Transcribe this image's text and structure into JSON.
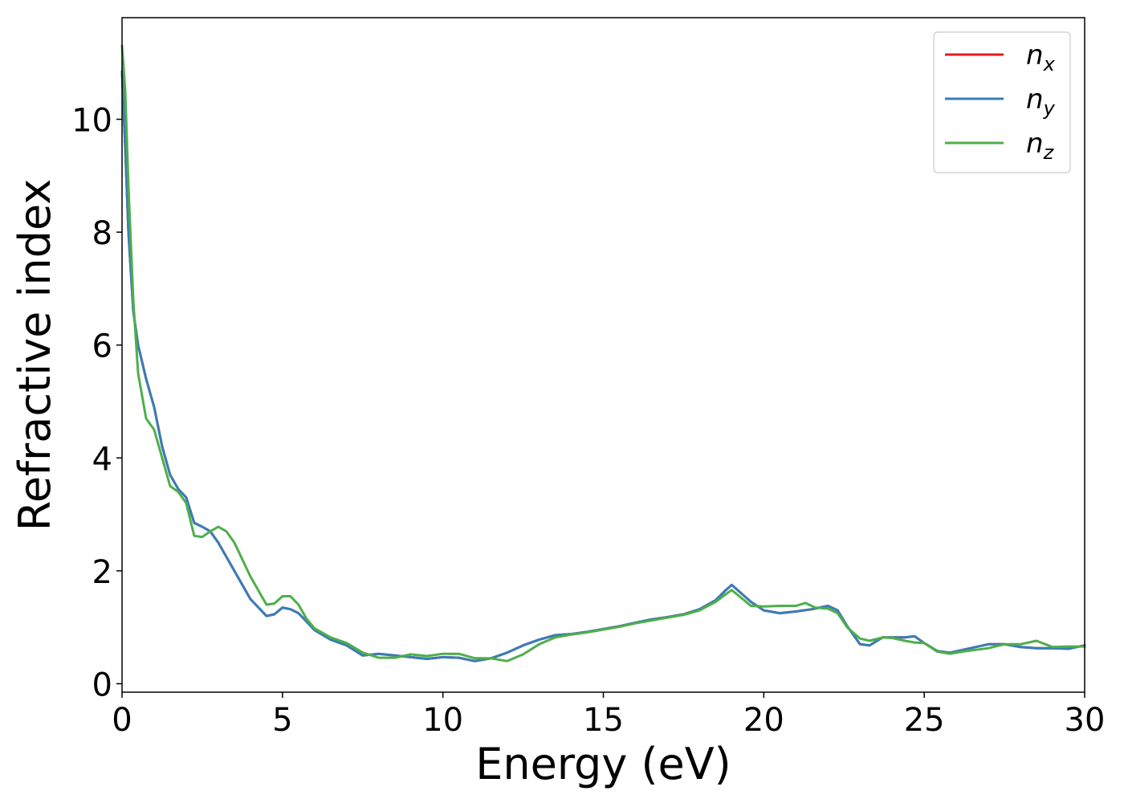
{
  "chart_data": {
    "type": "line",
    "title": "",
    "xlabel": "Energy (eV)",
    "ylabel": "Refractive index",
    "xlim": [
      0,
      30
    ],
    "ylim": [
      -0.15,
      11.8
    ],
    "xticks": [
      0,
      5,
      10,
      15,
      20,
      25,
      30
    ],
    "yticks": [
      0,
      2,
      4,
      6,
      8,
      10
    ],
    "grid": false,
    "legend_position": "top-right",
    "series": [
      {
        "name": "n",
        "subscript": "x",
        "color": "#e41a1c",
        "x": [
          0,
          0.1,
          0.2,
          0.35,
          0.5,
          0.75,
          1.0,
          1.25,
          1.5,
          1.75,
          2.0,
          2.25,
          2.5,
          2.75,
          3.0,
          3.5,
          4.0,
          4.5,
          4.75,
          5.0,
          5.25,
          5.5,
          5.75,
          6.0,
          6.5,
          7.0,
          7.5,
          8.0,
          8.5,
          9.0,
          9.5,
          10.0,
          10.5,
          11.0,
          11.5,
          12.0,
          12.5,
          13.0,
          13.5,
          14.0,
          14.5,
          15.0,
          15.5,
          16.0,
          16.5,
          17.0,
          17.5,
          18.0,
          18.5,
          18.8,
          19.0,
          19.3,
          19.6,
          20.0,
          20.5,
          21.0,
          21.5,
          22.0,
          22.3,
          22.6,
          23.0,
          23.3,
          23.7,
          24.0,
          24.4,
          24.7,
          25.0,
          25.4,
          25.8,
          26.2,
          26.6,
          27.0,
          27.5,
          28.0,
          28.5,
          29.0,
          29.5,
          30.0
        ],
        "values": [
          10.85,
          9.5,
          8.0,
          6.6,
          6.0,
          5.4,
          4.9,
          4.2,
          3.7,
          3.45,
          3.3,
          2.85,
          2.78,
          2.7,
          2.5,
          2.0,
          1.5,
          1.2,
          1.23,
          1.35,
          1.32,
          1.25,
          1.1,
          0.95,
          0.78,
          0.68,
          0.5,
          0.53,
          0.5,
          0.47,
          0.44,
          0.47,
          0.46,
          0.4,
          0.45,
          0.55,
          0.68,
          0.78,
          0.86,
          0.88,
          0.92,
          0.97,
          1.02,
          1.08,
          1.14,
          1.18,
          1.23,
          1.32,
          1.48,
          1.65,
          1.75,
          1.6,
          1.45,
          1.3,
          1.25,
          1.28,
          1.32,
          1.38,
          1.3,
          1.02,
          0.7,
          0.68,
          0.82,
          0.82,
          0.82,
          0.84,
          0.72,
          0.58,
          0.55,
          0.6,
          0.65,
          0.7,
          0.7,
          0.65,
          0.63,
          0.63,
          0.62,
          0.68
        ]
      },
      {
        "name": "n",
        "subscript": "y",
        "color": "#377eb8",
        "x": [
          0,
          0.1,
          0.2,
          0.35,
          0.5,
          0.75,
          1.0,
          1.25,
          1.5,
          1.75,
          2.0,
          2.25,
          2.5,
          2.75,
          3.0,
          3.5,
          4.0,
          4.5,
          4.75,
          5.0,
          5.25,
          5.5,
          5.75,
          6.0,
          6.5,
          7.0,
          7.5,
          8.0,
          8.5,
          9.0,
          9.5,
          10.0,
          10.5,
          11.0,
          11.5,
          12.0,
          12.5,
          13.0,
          13.5,
          14.0,
          14.5,
          15.0,
          15.5,
          16.0,
          16.5,
          17.0,
          17.5,
          18.0,
          18.5,
          18.8,
          19.0,
          19.3,
          19.6,
          20.0,
          20.5,
          21.0,
          21.5,
          22.0,
          22.3,
          22.6,
          23.0,
          23.3,
          23.7,
          24.0,
          24.4,
          24.7,
          25.0,
          25.4,
          25.8,
          26.2,
          26.6,
          27.0,
          27.5,
          28.0,
          28.5,
          29.0,
          29.5,
          30.0
        ],
        "values": [
          10.85,
          9.5,
          8.0,
          6.6,
          6.0,
          5.4,
          4.9,
          4.2,
          3.7,
          3.45,
          3.3,
          2.85,
          2.78,
          2.7,
          2.5,
          2.0,
          1.5,
          1.2,
          1.23,
          1.35,
          1.32,
          1.25,
          1.1,
          0.95,
          0.78,
          0.68,
          0.5,
          0.53,
          0.5,
          0.47,
          0.44,
          0.47,
          0.46,
          0.4,
          0.45,
          0.55,
          0.68,
          0.78,
          0.86,
          0.88,
          0.92,
          0.97,
          1.02,
          1.08,
          1.14,
          1.18,
          1.23,
          1.32,
          1.48,
          1.65,
          1.75,
          1.6,
          1.45,
          1.3,
          1.25,
          1.28,
          1.32,
          1.38,
          1.3,
          1.02,
          0.7,
          0.68,
          0.82,
          0.82,
          0.82,
          0.84,
          0.72,
          0.58,
          0.55,
          0.6,
          0.65,
          0.7,
          0.7,
          0.65,
          0.63,
          0.63,
          0.62,
          0.68
        ]
      },
      {
        "name": "n",
        "subscript": "z",
        "color": "#4daf4a",
        "x": [
          0,
          0.1,
          0.2,
          0.35,
          0.5,
          0.75,
          1.0,
          1.25,
          1.5,
          1.75,
          2.0,
          2.25,
          2.5,
          2.75,
          3.0,
          3.25,
          3.5,
          4.0,
          4.5,
          4.75,
          5.0,
          5.25,
          5.5,
          5.75,
          6.0,
          6.5,
          7.0,
          7.5,
          8.0,
          8.5,
          9.0,
          9.5,
          10.0,
          10.5,
          11.0,
          11.5,
          12.0,
          12.5,
          13.0,
          13.5,
          14.0,
          14.5,
          15.0,
          15.5,
          16.0,
          16.5,
          17.0,
          17.5,
          18.0,
          18.5,
          18.8,
          19.0,
          19.3,
          19.6,
          20.0,
          20.5,
          21.0,
          21.3,
          21.6,
          22.0,
          22.3,
          22.6,
          23.0,
          23.3,
          23.7,
          24.0,
          24.4,
          24.7,
          25.0,
          25.4,
          25.8,
          26.2,
          26.6,
          27.0,
          27.5,
          28.0,
          28.5,
          29.0,
          29.5,
          30.0
        ],
        "values": [
          11.3,
          10.5,
          8.8,
          6.8,
          5.5,
          4.7,
          4.5,
          4.0,
          3.5,
          3.4,
          3.2,
          2.62,
          2.6,
          2.7,
          2.78,
          2.7,
          2.5,
          1.9,
          1.4,
          1.42,
          1.55,
          1.55,
          1.4,
          1.15,
          0.98,
          0.82,
          0.72,
          0.55,
          0.46,
          0.46,
          0.52,
          0.49,
          0.53,
          0.53,
          0.45,
          0.45,
          0.4,
          0.52,
          0.7,
          0.82,
          0.87,
          0.91,
          0.96,
          1.01,
          1.07,
          1.12,
          1.17,
          1.22,
          1.3,
          1.45,
          1.58,
          1.66,
          1.52,
          1.38,
          1.37,
          1.38,
          1.38,
          1.43,
          1.35,
          1.33,
          1.25,
          1.0,
          0.8,
          0.76,
          0.82,
          0.81,
          0.76,
          0.73,
          0.72,
          0.57,
          0.53,
          0.57,
          0.6,
          0.63,
          0.7,
          0.7,
          0.76,
          0.65,
          0.66,
          0.66
        ]
      }
    ]
  }
}
